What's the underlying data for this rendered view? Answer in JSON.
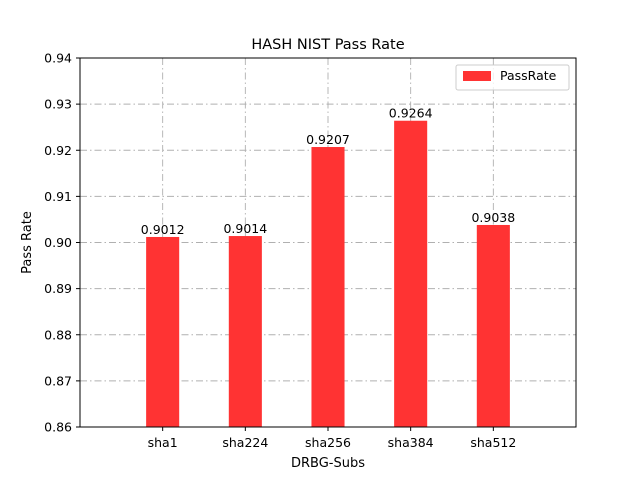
{
  "chart_data": {
    "type": "bar",
    "title": "HASH NIST Pass Rate",
    "xlabel": "DRBG-Subs",
    "ylabel": "Pass Rate",
    "categories": [
      "sha1",
      "sha224",
      "sha256",
      "sha384",
      "sha512"
    ],
    "series": [
      {
        "name": "PassRate",
        "values": [
          0.9012,
          0.9014,
          0.9207,
          0.9264,
          0.9038
        ],
        "color": "#ff3333"
      }
    ],
    "data_labels": [
      "0.9012",
      "0.9014",
      "0.9207",
      "0.9264",
      "0.9038"
    ],
    "ylim": [
      0.86,
      0.94
    ],
    "yticks": [
      "0.86",
      "0.87",
      "0.88",
      "0.89",
      "0.90",
      "0.91",
      "0.92",
      "0.93",
      "0.94"
    ],
    "grid": true,
    "legend_position": "top-right"
  }
}
